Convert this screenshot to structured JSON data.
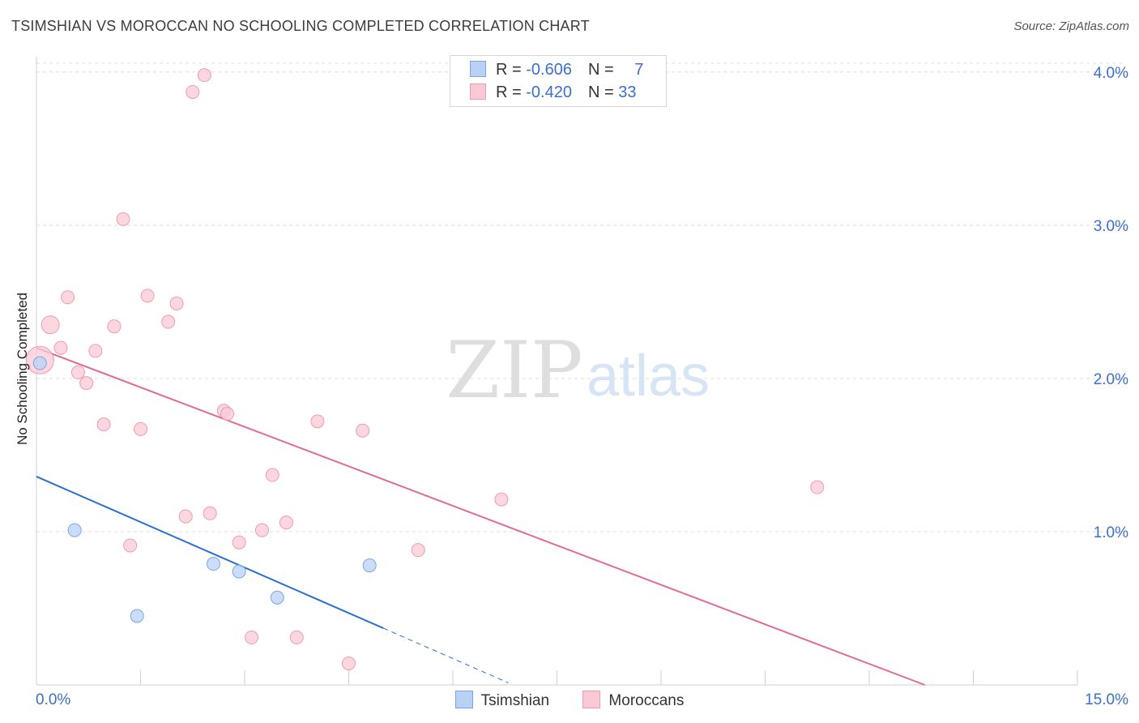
{
  "title": "TSIMSHIAN VS MOROCCAN NO SCHOOLING COMPLETED CORRELATION CHART",
  "source": "Source: ZipAtlas.com",
  "watermark": {
    "zip": "ZIP",
    "atlas": "atlas"
  },
  "legend": {
    "tsimshian": {
      "r_label": "R = ",
      "r_value": "-0.606",
      "n_label": "N = ",
      "n_value": "7"
    },
    "moroccans": {
      "r_label": "R = ",
      "r_value": "-0.420",
      "n_label": "N = ",
      "n_value": "33"
    }
  },
  "colors": {
    "tsimshian_fill": "#b9d1f5",
    "tsimshian_stroke": "#7aa6e3",
    "tsimshian_line": "#2a6fd1",
    "moroccans_fill": "#fbc9d6",
    "moroccans_stroke": "#ee9ab2",
    "moroccans_line": "#e06b95",
    "tick_label": "#3a6fcf",
    "grid": "#dcdcdc"
  },
  "chart_data": {
    "type": "scatter",
    "title": "TSIMSHIAN VS MOROCCAN NO SCHOOLING COMPLETED CORRELATION CHART",
    "xlabel": "",
    "ylabel": "No Schooling Completed",
    "xlim": [
      0,
      15
    ],
    "ylim": [
      0,
      4.1
    ],
    "x_tick_labels": [
      "0.0%",
      "15.0%"
    ],
    "y_ticks": [
      1,
      2,
      3,
      4
    ],
    "y_tick_labels": [
      "1.0%",
      "2.0%",
      "3.0%",
      "4.0%"
    ],
    "grid": true,
    "series": [
      {
        "name": "Tsimshian",
        "points": [
          {
            "x": 0.05,
            "y": 2.1,
            "size": "small"
          },
          {
            "x": 0.55,
            "y": 1.01,
            "size": "small"
          },
          {
            "x": 1.45,
            "y": 0.45,
            "size": "small"
          },
          {
            "x": 2.55,
            "y": 0.79,
            "size": "small"
          },
          {
            "x": 2.92,
            "y": 0.74,
            "size": "small"
          },
          {
            "x": 3.47,
            "y": 0.57,
            "size": "small"
          },
          {
            "x": 4.8,
            "y": 0.78,
            "size": "small"
          }
        ],
        "trend": {
          "x0": 0,
          "y0": 1.36,
          "x1": 5.0,
          "y1": 0.37,
          "dash_to_x": 6.8
        }
      },
      {
        "name": "Moroccans",
        "points": [
          {
            "x": 0.05,
            "y": 2.12,
            "size": "large"
          },
          {
            "x": 0.2,
            "y": 2.35,
            "size": "medium"
          },
          {
            "x": 0.35,
            "y": 2.2,
            "size": "small"
          },
          {
            "x": 0.45,
            "y": 2.53,
            "size": "small"
          },
          {
            "x": 0.6,
            "y": 2.04,
            "size": "small"
          },
          {
            "x": 0.72,
            "y": 1.97,
            "size": "small"
          },
          {
            "x": 0.85,
            "y": 2.18,
            "size": "small"
          },
          {
            "x": 0.97,
            "y": 1.7,
            "size": "small"
          },
          {
            "x": 1.12,
            "y": 2.34,
            "size": "small"
          },
          {
            "x": 1.25,
            "y": 3.04,
            "size": "small"
          },
          {
            "x": 1.35,
            "y": 0.91,
            "size": "small"
          },
          {
            "x": 1.5,
            "y": 1.67,
            "size": "small"
          },
          {
            "x": 1.6,
            "y": 2.54,
            "size": "small"
          },
          {
            "x": 1.9,
            "y": 2.37,
            "size": "small"
          },
          {
            "x": 2.02,
            "y": 2.49,
            "size": "small"
          },
          {
            "x": 2.15,
            "y": 1.1,
            "size": "small"
          },
          {
            "x": 2.25,
            "y": 3.87,
            "size": "small"
          },
          {
            "x": 2.42,
            "y": 3.98,
            "size": "small"
          },
          {
            "x": 2.5,
            "y": 1.12,
            "size": "small"
          },
          {
            "x": 2.7,
            "y": 1.79,
            "size": "small"
          },
          {
            "x": 2.75,
            "y": 1.77,
            "size": "small"
          },
          {
            "x": 2.92,
            "y": 0.93,
            "size": "small"
          },
          {
            "x": 3.1,
            "y": 0.31,
            "size": "small"
          },
          {
            "x": 3.25,
            "y": 1.01,
            "size": "small"
          },
          {
            "x": 3.4,
            "y": 1.37,
            "size": "small"
          },
          {
            "x": 3.6,
            "y": 1.06,
            "size": "small"
          },
          {
            "x": 3.75,
            "y": 0.31,
            "size": "small"
          },
          {
            "x": 4.05,
            "y": 1.72,
            "size": "small"
          },
          {
            "x": 4.5,
            "y": 0.14,
            "size": "small"
          },
          {
            "x": 4.7,
            "y": 1.66,
            "size": "small"
          },
          {
            "x": 5.5,
            "y": 0.88,
            "size": "small"
          },
          {
            "x": 6.7,
            "y": 1.21,
            "size": "small"
          },
          {
            "x": 11.25,
            "y": 1.29,
            "size": "small"
          }
        ],
        "trend": {
          "x0": 0,
          "y0": 2.2,
          "x1": 12.8,
          "y1": 0
        }
      }
    ]
  }
}
